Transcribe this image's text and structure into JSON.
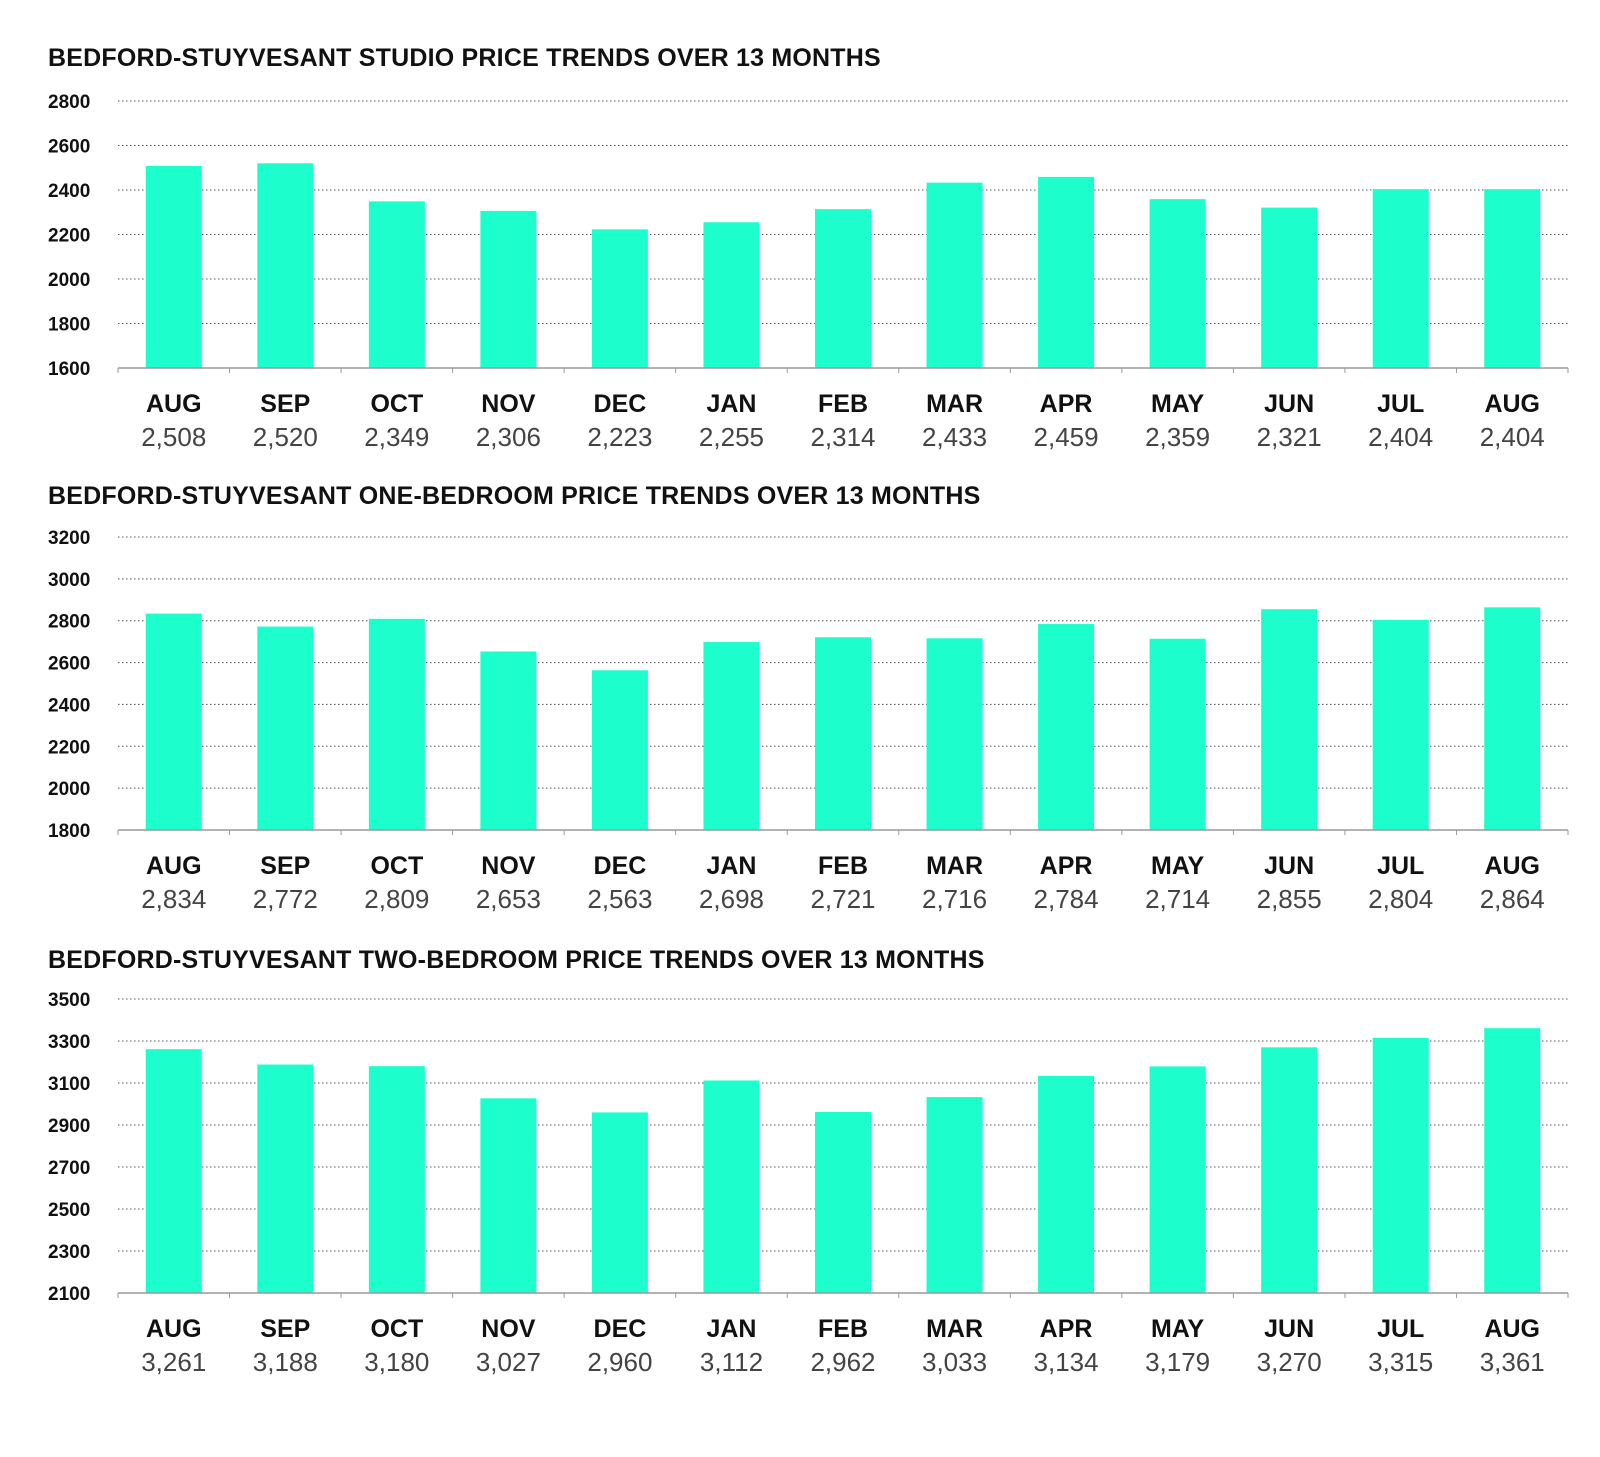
{
  "colors": {
    "bar": "#1CFFCC",
    "text": "#111111",
    "value_text": "#444444"
  },
  "chart_data": [
    {
      "type": "bar",
      "title": "BEDFORD-STUYVESANT STUDIO PRICE TRENDS OVER 13 MONTHS",
      "categories": [
        "AUG",
        "SEP",
        "OCT",
        "NOV",
        "DEC",
        "JAN",
        "FEB",
        "MAR",
        "APR",
        "MAY",
        "JUN",
        "JUL",
        "AUG"
      ],
      "values": [
        2508,
        2520,
        2349,
        2306,
        2223,
        2255,
        2314,
        2433,
        2459,
        2359,
        2321,
        2404,
        2404
      ],
      "value_labels": [
        "2,508",
        "2,520",
        "2,349",
        "2,306",
        "2,223",
        "2,255",
        "2,314",
        "2,433",
        "2,459",
        "2,359",
        "2,321",
        "2,404",
        "2,404"
      ],
      "yticks": [
        1600,
        1800,
        2000,
        2200,
        2400,
        2600,
        2800
      ],
      "ylim": [
        1600,
        2800
      ],
      "xlabel": "",
      "ylabel": "",
      "grid": true
    },
    {
      "type": "bar",
      "title": "BEDFORD-STUYVESANT ONE-BEDROOM PRICE TRENDS OVER 13 MONTHS",
      "categories": [
        "AUG",
        "SEP",
        "OCT",
        "NOV",
        "DEC",
        "JAN",
        "FEB",
        "MAR",
        "APR",
        "MAY",
        "JUN",
        "JUL",
        "AUG"
      ],
      "values": [
        2834,
        2772,
        2809,
        2653,
        2563,
        2698,
        2721,
        2716,
        2784,
        2714,
        2855,
        2804,
        2864
      ],
      "value_labels": [
        "2,834",
        "2,772",
        "2,809",
        "2,653",
        "2,563",
        "2,698",
        "2,721",
        "2,716",
        "2,784",
        "2,714",
        "2,855",
        "2,804",
        "2,864"
      ],
      "yticks": [
        1800,
        2000,
        2200,
        2400,
        2600,
        2800,
        3000,
        3200
      ],
      "ylim": [
        1800,
        3200
      ],
      "xlabel": "",
      "ylabel": "",
      "grid": true
    },
    {
      "type": "bar",
      "title": "BEDFORD-STUYVESANT TWO-BEDROOM PRICE TRENDS OVER 13 MONTHS",
      "categories": [
        "AUG",
        "SEP",
        "OCT",
        "NOV",
        "DEC",
        "JAN",
        "FEB",
        "MAR",
        "APR",
        "MAY",
        "JUN",
        "JUL",
        "AUG"
      ],
      "values": [
        3261,
        3188,
        3180,
        3027,
        2960,
        3112,
        2962,
        3033,
        3134,
        3179,
        3270,
        3315,
        3361
      ],
      "value_labels": [
        "3,261",
        "3,188",
        "3,180",
        "3,027",
        "2,960",
        "3,112",
        "2,962",
        "3,033",
        "3,134",
        "3,179",
        "3,270",
        "3,315",
        "3,361"
      ],
      "yticks": [
        2100,
        2300,
        2500,
        2700,
        2900,
        3100,
        3300,
        3500
      ],
      "ylim": [
        2100,
        3500
      ],
      "xlabel": "",
      "ylabel": "",
      "grid": true
    }
  ]
}
